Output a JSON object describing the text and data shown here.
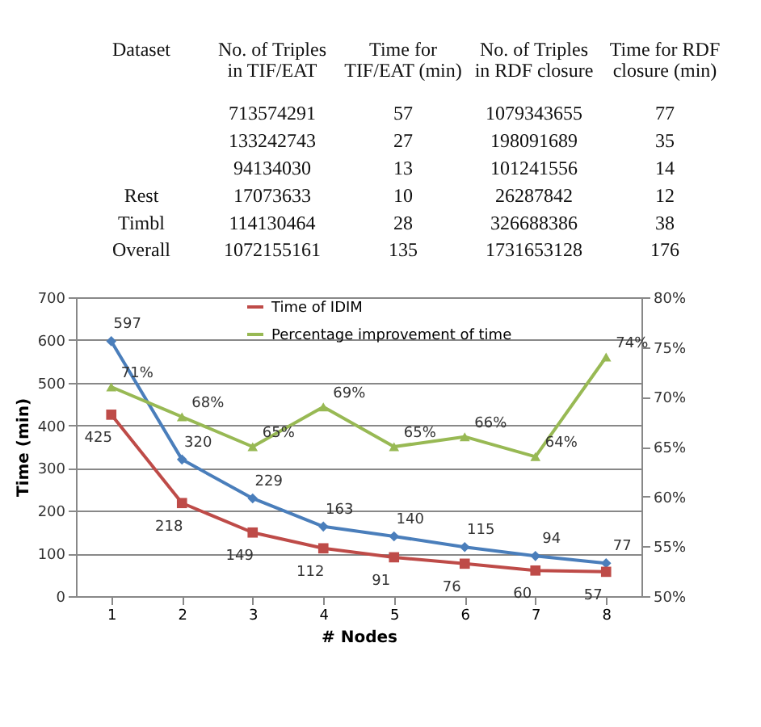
{
  "chart_data": [
    {
      "type": "other",
      "categories": [
        "Dataset",
        "No. of Triples in TIF/EAT",
        "Time for TIF/EAT (min)",
        "No. of Triples in RDF closure",
        "Time for RDF closure (min)"
      ],
      "y_categories": [
        null,
        null,
        null,
        "Rest",
        "Timbl",
        "Overall"
      ],
      "cell_labels": [
        [
          "713574291",
          "57",
          "1079343655",
          "77"
        ],
        [
          "133242743",
          "27",
          "198091689",
          "35"
        ],
        [
          "94134030",
          "13",
          "101241556",
          "14"
        ],
        [
          "17073633",
          "10",
          "26287842",
          "12"
        ],
        [
          "114130464",
          "28",
          "326688386",
          "38"
        ],
        [
          "1072155161",
          "135",
          "1731653128",
          "176"
        ]
      ]
    },
    {
      "type": "line",
      "xlabel": "# Nodes",
      "ylabel": "Time (min)",
      "categories": [
        "1",
        "2",
        "3",
        "4",
        "5",
        "6",
        "7",
        "8"
      ],
      "ylim": [
        0,
        700
      ],
      "yticks": [
        0,
        100,
        200,
        300,
        400,
        500,
        600,
        700
      ],
      "y2lim": [
        50,
        80
      ],
      "y2ticks": [
        {
          "value": 50,
          "label": "50%"
        },
        {
          "value": 55,
          "label": "55%"
        },
        {
          "value": 60,
          "label": "60%"
        },
        {
          "value": 65,
          "label": "65%"
        },
        {
          "value": 70,
          "label": "70%"
        },
        {
          "value": 75,
          "label": "75%"
        },
        {
          "value": 80,
          "label": "80%"
        }
      ],
      "grid": "y",
      "legend": "top",
      "series": [
        {
          "color": "#4a7ebb",
          "marker": "diamond",
          "values": [
            597,
            320,
            229,
            163,
            140,
            115,
            94,
            77
          ],
          "value_labels": [
            "597",
            "320",
            "229",
            "163",
            "140",
            "115",
            "94",
            "77"
          ]
        },
        {
          "name": "Time of IDIM",
          "color": "#be4b48",
          "marker": "square",
          "values": [
            425,
            218,
            149,
            112,
            91,
            76,
            60,
            57
          ],
          "value_labels": [
            "425",
            "218",
            "149",
            "112",
            "91",
            "76",
            "60",
            "57"
          ]
        },
        {
          "name": "Percentage improvement of time",
          "color": "#98b954",
          "marker": "triangle",
          "axis": "y2",
          "values": [
            71,
            68,
            65,
            69,
            65,
            66,
            64,
            74
          ],
          "value_labels": [
            "71%",
            "68%",
            "65%",
            "69%",
            "65%",
            "66%",
            "64%",
            "74%"
          ]
        }
      ]
    }
  ]
}
